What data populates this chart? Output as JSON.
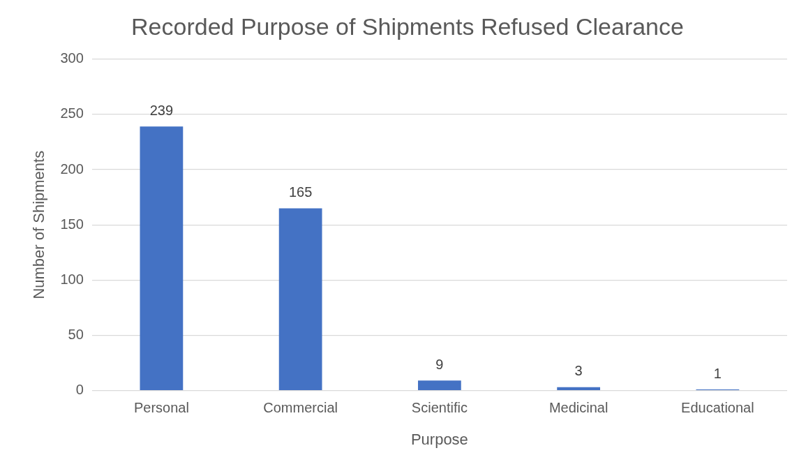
{
  "chart_data": {
    "type": "bar",
    "title": "Recorded Purpose of Shipments Refused Clearance",
    "xlabel": "Purpose",
    "ylabel": "Number of Shipments",
    "categories": [
      "Personal",
      "Commercial",
      "Scientific",
      "Medicinal",
      "Educational"
    ],
    "values": [
      239,
      165,
      9,
      3,
      1
    ],
    "color": "#4472c4",
    "ylim": [
      0,
      300
    ],
    "yticks": [
      0,
      50,
      100,
      150,
      200,
      250,
      300
    ],
    "grid": "y",
    "data_labels": true,
    "legend": false
  }
}
